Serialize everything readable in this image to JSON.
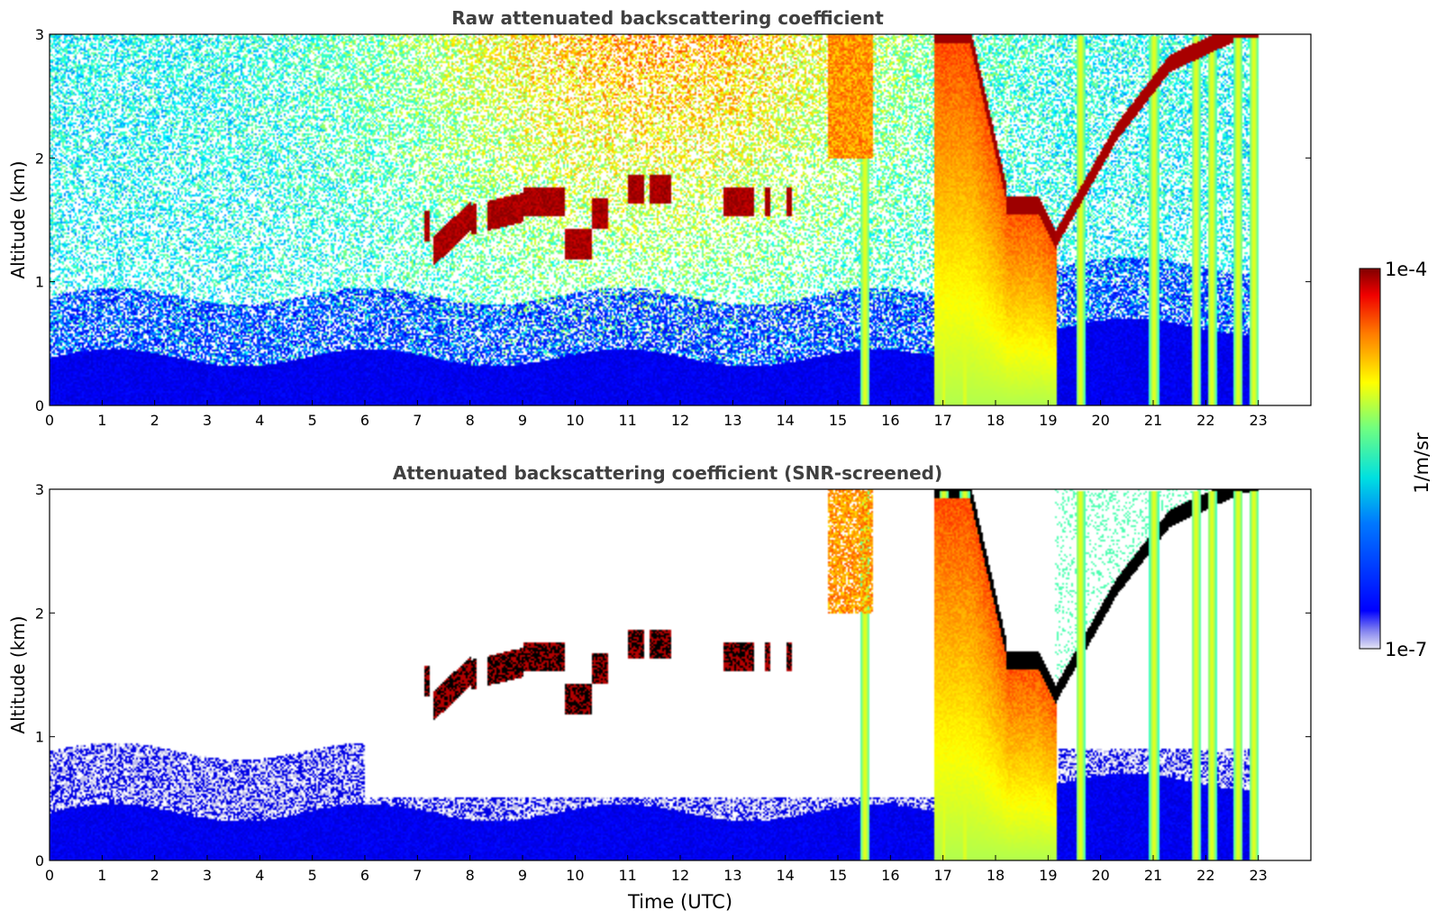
{
  "chart_data": [
    {
      "type": "heatmap",
      "title": "Raw attenuated backscattering coefficient",
      "xlabel": "",
      "ylabel": "Altitude (km)",
      "xlim": [
        0,
        24
      ],
      "ylim": [
        0,
        3
      ],
      "x_ticks": [
        0,
        1,
        2,
        3,
        4,
        5,
        6,
        7,
        8,
        9,
        10,
        11,
        12,
        13,
        14,
        15,
        16,
        17,
        18,
        19,
        20,
        21,
        22,
        23
      ],
      "y_ticks": [
        0,
        1,
        2,
        3
      ],
      "data_end_time": 23,
      "screened": false,
      "features": {
        "boundary_layer_top_km": 0.45,
        "cloud_layer_1": {
          "start": 7.1,
          "end": 14.1,
          "altitude_km": [
            1.2,
            1.85
          ]
        },
        "dense_cloud": {
          "start": 16.8,
          "end": 19.15,
          "base_km_start": 3.0,
          "base_km_end": 1.3
        },
        "rising_cloud": {
          "start": 19.1,
          "end": 23.0,
          "base_km_start": 1.3,
          "base_km_end": 3.0
        },
        "precipitation_shafts": [
          15.5,
          17.0,
          17.4,
          19.6,
          21.0,
          21.8,
          22.1,
          22.6,
          22.9
        ]
      }
    },
    {
      "type": "heatmap",
      "title": "Attenuated backscattering coefficient (SNR-screened)",
      "xlabel": "Time (UTC)",
      "ylabel": "Altitude (km)",
      "xlim": [
        0,
        24
      ],
      "ylim": [
        0,
        3
      ],
      "x_ticks": [
        0,
        1,
        2,
        3,
        4,
        5,
        6,
        7,
        8,
        9,
        10,
        11,
        12,
        13,
        14,
        15,
        16,
        17,
        18,
        19,
        20,
        21,
        22,
        23
      ],
      "y_ticks": [
        0,
        1,
        2,
        3
      ],
      "data_end_time": 23,
      "screened": true,
      "features": {
        "boundary_layer_top_km": 0.9,
        "cloud_layer_1": {
          "start": 7.1,
          "end": 14.1,
          "altitude_km": [
            1.2,
            1.85
          ]
        },
        "dense_cloud": {
          "start": 16.8,
          "end": 19.15,
          "base_km_start": 3.0,
          "base_km_end": 1.3
        },
        "rising_cloud": {
          "start": 19.1,
          "end": 23.0,
          "base_km_start": 1.3,
          "base_km_end": 3.0
        },
        "precipitation_shafts": [
          15.5,
          17.0,
          17.4,
          19.6,
          21.0,
          21.8,
          22.1,
          22.6,
          22.9
        ]
      }
    }
  ],
  "colorbar": {
    "label": "1/m/sr",
    "max_label": "1e-4",
    "min_label": "1e-7",
    "scale": "log",
    "range": [
      1e-07,
      0.0001
    ],
    "colormap": "jet"
  }
}
